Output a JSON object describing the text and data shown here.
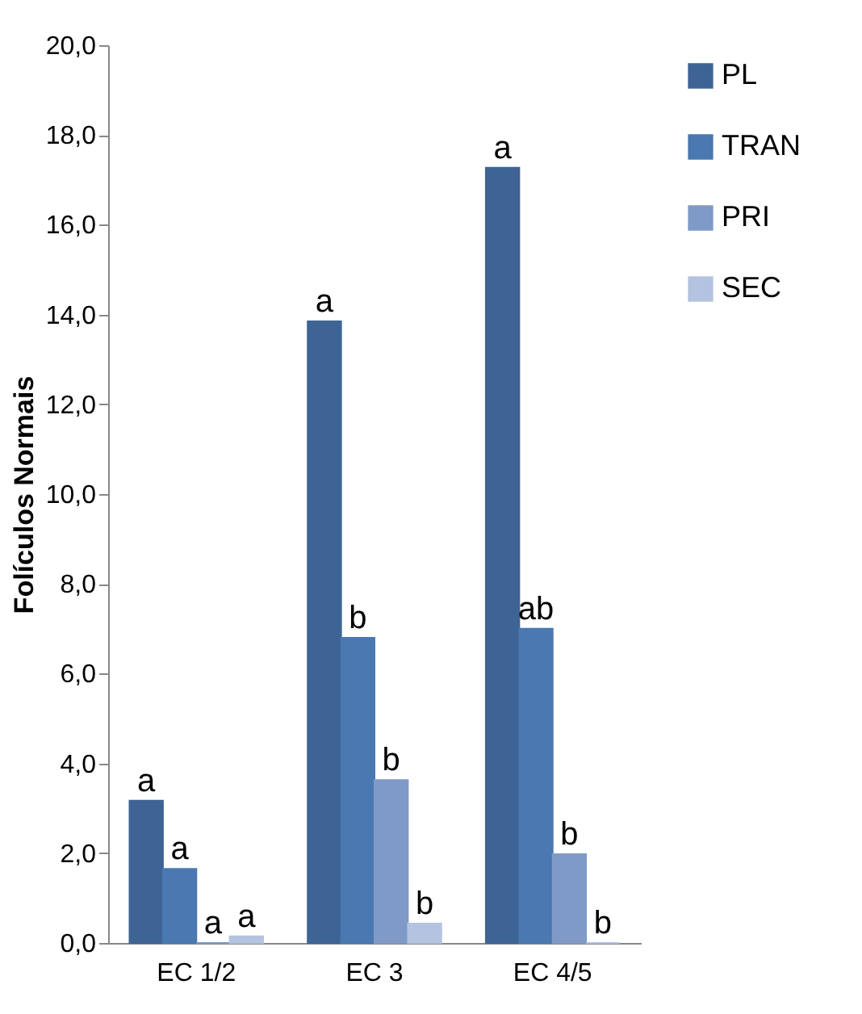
{
  "chart_data": {
    "type": "bar",
    "ylabel": "Folículos Normais",
    "categories": [
      "EC 1/2",
      "EC 3",
      "EC 4/5"
    ],
    "series": [
      {
        "name": "PL",
        "color": "#3d6495",
        "values": [
          3.17,
          13.85,
          17.27
        ],
        "value_labels": [
          "a",
          "a",
          "a"
        ]
      },
      {
        "name": "TRAN",
        "color": "#4a78b0",
        "values": [
          1.65,
          6.8,
          7.0
        ],
        "value_labels": [
          "a",
          "b",
          "ab"
        ]
      },
      {
        "name": "PRI",
        "color": "#7f9ac7",
        "values": [
          0,
          3.63,
          1.98
        ],
        "value_labels": [
          "a",
          "b",
          "b"
        ]
      },
      {
        "name": "SEC",
        "color": "#b3c3e0",
        "values": [
          0.15,
          0.43,
          0
        ],
        "value_labels": [
          "a",
          "b",
          "b"
        ]
      }
    ],
    "ylim": [
      0,
      20
    ],
    "yticks": [
      {
        "value": 0,
        "label": "0,0"
      },
      {
        "value": 2,
        "label": "2,0"
      },
      {
        "value": 4,
        "label": "4,0"
      },
      {
        "value": 6,
        "label": "6,0"
      },
      {
        "value": 8,
        "label": "8,0"
      },
      {
        "value": 10,
        "label": "10,0"
      },
      {
        "value": 12,
        "label": "12,0"
      },
      {
        "value": 14,
        "label": "14,0"
      },
      {
        "value": 16,
        "label": "16,0"
      },
      {
        "value": 18,
        "label": "18,0"
      },
      {
        "value": 20,
        "label": "20,0"
      }
    ],
    "grid": false,
    "legend": "right"
  }
}
